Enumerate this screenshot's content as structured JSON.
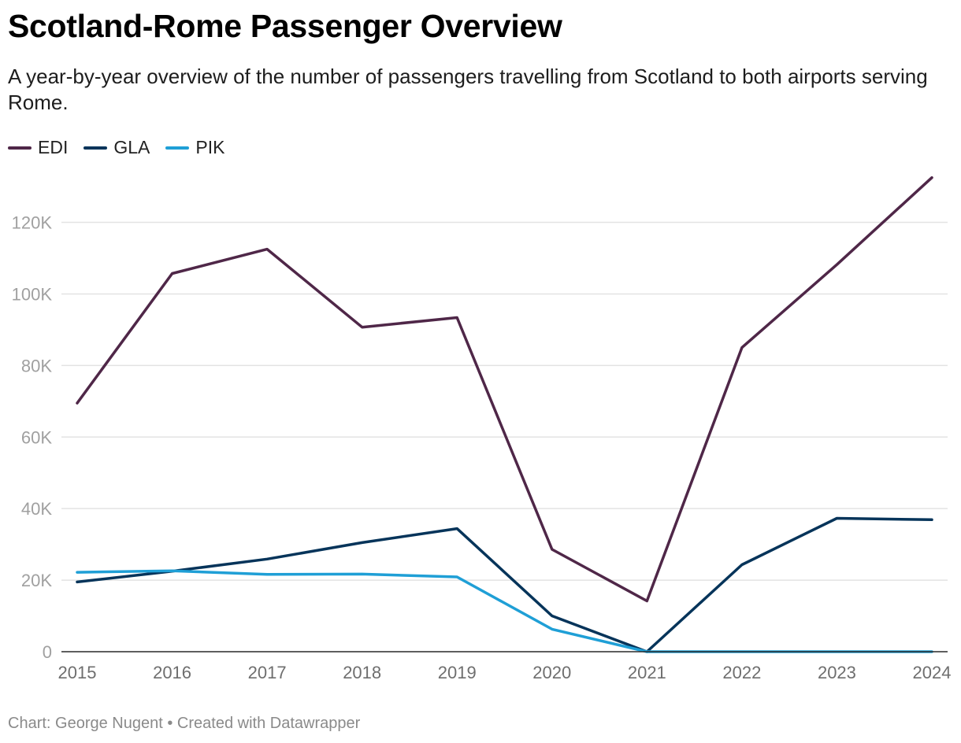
{
  "title": "Scotland-Rome Passenger Overview",
  "subtitle": "A year-by-year overview of the number of passengers travelling from Scotland to both airports serving Rome.",
  "footer": {
    "credit": "Chart: George Nugent",
    "separator": "•",
    "tool": "Created with Datawrapper"
  },
  "colors": {
    "EDI": "#4f2748",
    "GLA": "#06345a",
    "PIK": "#1f9fd6",
    "grid": "#e3e3e3",
    "baseline": "#2a2a2a"
  },
  "chart_data": {
    "type": "line",
    "title": "Scotland-Rome Passenger Overview",
    "xlabel": "",
    "ylabel": "",
    "x": [
      "2015",
      "2016",
      "2017",
      "2018",
      "2019",
      "2020",
      "2021",
      "2022",
      "2023",
      "2024"
    ],
    "ylim": [
      0,
      132000
    ],
    "yticks": [
      0,
      20000,
      40000,
      60000,
      80000,
      100000,
      120000
    ],
    "ytick_labels": [
      "0",
      "20K",
      "40K",
      "60K",
      "80K",
      "100K",
      "120K"
    ],
    "grid": true,
    "legend": "top-left",
    "series": [
      {
        "name": "EDI",
        "values": [
          69500,
          105700,
          112500,
          90700,
          93400,
          28600,
          14200,
          85000,
          108200,
          132500
        ]
      },
      {
        "name": "GLA",
        "values": [
          19500,
          22500,
          25900,
          30500,
          34400,
          10000,
          0,
          24300,
          37300,
          36900
        ]
      },
      {
        "name": "PIK",
        "values": [
          22200,
          22600,
          21600,
          21700,
          20900,
          6300,
          0,
          0,
          0,
          0
        ]
      }
    ]
  }
}
